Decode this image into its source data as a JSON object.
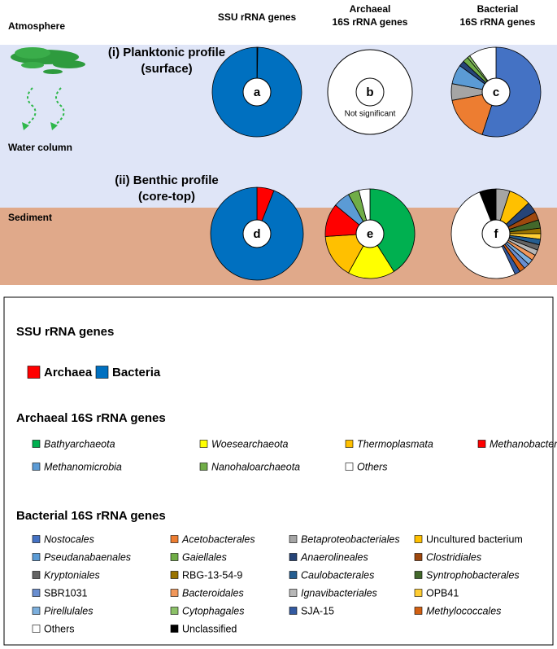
{
  "zones": [
    "Atmosphere",
    "Water column",
    "Sediment"
  ],
  "columns": [
    [
      "SSU rRNA genes"
    ],
    [
      "Archaeal",
      "16S rRNA genes"
    ],
    [
      "Bacterial",
      "16S rRNA genes"
    ]
  ],
  "rows": [
    [
      "(i) Planktonic profile",
      "(surface)"
    ],
    [
      "(ii) Benthic profile",
      "(core-top)"
    ]
  ],
  "pies": [
    {
      "letter": "a",
      "values": [
        0.3,
        99.7
      ],
      "colors": [
        "#ff0000",
        "#0070c0"
      ]
    },
    {
      "letter": "b",
      "note": "Not significant"
    },
    {
      "letter": "c",
      "values": [
        55,
        17,
        6,
        7,
        2,
        2,
        1,
        10
      ],
      "colors": [
        "#4472c4",
        "#ed7d31",
        "#a5a5a5",
        "#5b9bd5",
        "#264478",
        "#70ad47",
        "#8cc168",
        "#ffffff"
      ]
    },
    {
      "letter": "d",
      "values": [
        6,
        94
      ],
      "colors": [
        "#ff0000",
        "#0070c0"
      ]
    },
    {
      "letter": "e",
      "values": [
        41,
        17,
        16,
        12,
        6,
        4,
        4
      ],
      "colors": [
        "#00b050",
        "#ffff00",
        "#ffc000",
        "#ff0000",
        "#5b9bd5",
        "#70ad47",
        "#ffffff"
      ]
    },
    {
      "letter": "f",
      "values": [
        5,
        8,
        4,
        3,
        3,
        2,
        2,
        2,
        2,
        2,
        2,
        2,
        2,
        2,
        2,
        51,
        6
      ],
      "colors": [
        "#a5a5a5",
        "#ffc000",
        "#264478",
        "#9e480e",
        "#43682b",
        "#997300",
        "#ffcd33",
        "#255e91",
        "#636363",
        "#b7b7b7",
        "#f1975a",
        "#7cafdd",
        "#698ed0",
        "#d26012",
        "#335aa1",
        "#ffffff",
        "#000000"
      ]
    }
  ],
  "legend": [
    {
      "title": "SSU rRNA genes",
      "items": [
        {
          "name": "Archaea",
          "color": "#ff0000"
        },
        {
          "name": "Bacteria",
          "color": "#0070c0"
        }
      ]
    },
    {
      "title": "Archaeal 16S rRNA genes",
      "items": [
        {
          "name": "Bathyarchaeota",
          "color": "#00b050",
          "italic": true
        },
        {
          "name": "Woesearchaeota",
          "color": "#ffff00",
          "italic": true
        },
        {
          "name": "Thermoplasmata",
          "color": "#ffc000",
          "italic": true
        },
        {
          "name": "Methanobacteria",
          "color": "#ff0000",
          "italic": true
        },
        {
          "name": "Methanomicrobia",
          "color": "#5b9bd5",
          "italic": true
        },
        {
          "name": "Nanohaloarchaeota",
          "color": "#70ad47",
          "italic": true
        },
        {
          "name": "Others",
          "color": "#ffffff",
          "italic": true
        }
      ]
    },
    {
      "title": "Bacterial 16S rRNA genes",
      "items": [
        {
          "name": "Nostocales",
          "color": "#4472c4",
          "italic": true
        },
        {
          "name": "Acetobacterales",
          "color": "#ed7d31",
          "italic": true
        },
        {
          "name": "Betaproteobacteriales",
          "color": "#a5a5a5",
          "italic": true
        },
        {
          "name": "Uncultured bacterium",
          "color": "#ffc000"
        },
        {
          "name": "Pseudanabaenales",
          "color": "#5b9bd5",
          "italic": true
        },
        {
          "name": "Gaiellales",
          "color": "#70ad47",
          "italic": true
        },
        {
          "name": "Anaerolineales",
          "color": "#264478",
          "italic": true
        },
        {
          "name": "Clostridiales",
          "color": "#9e480e",
          "italic": true
        },
        {
          "name": "Kryptoniales",
          "color": "#636363",
          "italic": true
        },
        {
          "name": "RBG-13-54-9",
          "color": "#997300"
        },
        {
          "name": "Caulobacterales",
          "color": "#255e91",
          "italic": true
        },
        {
          "name": "Syntrophobacterales",
          "color": "#43682b",
          "italic": true
        },
        {
          "name": "SBR1031",
          "color": "#698ed0"
        },
        {
          "name": "Bacteroidales",
          "color": "#f1975a",
          "italic": true
        },
        {
          "name": "Ignavibacteriales",
          "color": "#b7b7b7",
          "italic": true
        },
        {
          "name": "OPB41",
          "color": "#ffcd33"
        },
        {
          "name": "Pirellulales",
          "color": "#7cafdd",
          "italic": true
        },
        {
          "name": "Cytophagales",
          "color": "#8cc168",
          "italic": true
        },
        {
          "name": "SJA-15",
          "color": "#335aa1"
        },
        {
          "name": "Methylococcales",
          "color": "#d26012",
          "italic": true
        },
        {
          "name": "Others",
          "color": "#ffffff"
        },
        {
          "name": "Unclassified",
          "color": "#000000"
        }
      ]
    }
  ]
}
